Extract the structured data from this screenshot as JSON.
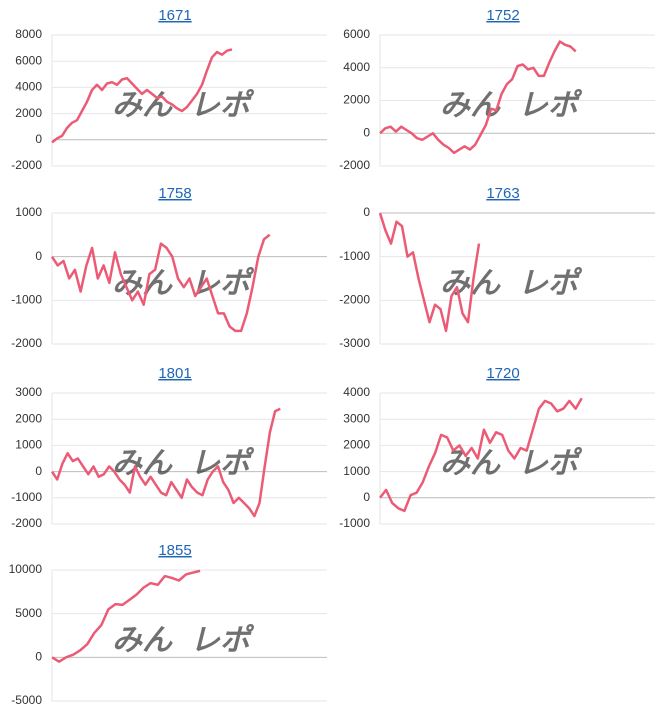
{
  "watermark": [
    "みん",
    "レポ"
  ],
  "chart_data": [
    {
      "type": "line",
      "title": "1671",
      "color": "#ec5b76",
      "xlim": [
        0,
        55
      ],
      "ylim": [
        -2000,
        8000
      ],
      "yticks": [
        -2000,
        0,
        2000,
        4000,
        6000,
        8000
      ],
      "grid": true,
      "values": [
        -200,
        100,
        300,
        900,
        1300,
        1500,
        2200,
        2900,
        3800,
        4200,
        3800,
        4300,
        4400,
        4200,
        4600,
        4700,
        4300,
        3900,
        3500,
        3800,
        3500,
        3200,
        3300,
        2900,
        2700,
        2400,
        2200,
        2500,
        3000,
        3500,
        4200,
        5300,
        6300,
        6700,
        6500,
        6800,
        6900
      ]
    },
    {
      "type": "line",
      "title": "1752",
      "color": "#ec5b76",
      "xlim": [
        0,
        52
      ],
      "ylim": [
        -2000,
        6000
      ],
      "yticks": [
        -2000,
        0,
        2000,
        4000,
        6000
      ],
      "grid": true,
      "values": [
        0,
        300,
        400,
        100,
        400,
        200,
        0,
        -300,
        -400,
        -200,
        0,
        -400,
        -700,
        -900,
        -1200,
        -1000,
        -800,
        -1000,
        -700,
        -100,
        500,
        1500,
        1400,
        2400,
        3000,
        3300,
        4100,
        4200,
        3900,
        4000,
        3500,
        3500,
        4300,
        5000,
        5600,
        5400,
        5300,
        5000
      ]
    },
    {
      "type": "line",
      "title": "1758",
      "color": "#ec5b76",
      "xlim": [
        0,
        48
      ],
      "ylim": [
        -2000,
        1000
      ],
      "yticks": [
        -2000,
        -1000,
        0,
        1000
      ],
      "grid": true,
      "values": [
        0,
        -200,
        -100,
        -500,
        -300,
        -800,
        -200,
        200,
        -500,
        -200,
        -600,
        100,
        -400,
        -700,
        -1000,
        -800,
        -1100,
        -400,
        -300,
        300,
        200,
        0,
        -500,
        -700,
        -500,
        -900,
        -700,
        -500,
        -900,
        -1300,
        -1300,
        -1600,
        -1700,
        -1700,
        -1300,
        -700,
        0,
        400,
        500
      ]
    },
    {
      "type": "line",
      "title": "1763",
      "color": "#ec5b76",
      "xlim": [
        0,
        50
      ],
      "ylim": [
        -3000,
        0
      ],
      "yticks": [
        -3000,
        -2000,
        -1000,
        0
      ],
      "grid": true,
      "values": [
        0,
        -400,
        -700,
        -200,
        -300,
        -1000,
        -900,
        -1500,
        -2000,
        -2500,
        -2100,
        -2200,
        -2700,
        -1900,
        -1700,
        -2300,
        -2500,
        -1500,
        -700
      ]
    },
    {
      "type": "line",
      "title": "1801",
      "color": "#ec5b76",
      "xlim": [
        0,
        53
      ],
      "ylim": [
        -2000,
        3000
      ],
      "yticks": [
        -2000,
        -1000,
        0,
        1000,
        2000,
        3000
      ],
      "grid": true,
      "values": [
        0,
        -300,
        300,
        700,
        400,
        500,
        200,
        -100,
        200,
        -200,
        -100,
        200,
        0,
        -300,
        -500,
        -800,
        200,
        -200,
        -500,
        -200,
        -500,
        -800,
        -900,
        -400,
        -700,
        -1000,
        -300,
        -600,
        -800,
        -900,
        -300,
        0,
        200,
        -400,
        -700,
        -1200,
        -1000,
        -1200,
        -1400,
        -1700,
        -1200,
        200,
        1500,
        2300,
        2400
      ]
    },
    {
      "type": "line",
      "title": "1720",
      "color": "#ec5b76",
      "xlim": [
        0,
        45
      ],
      "ylim": [
        -1000,
        4000
      ],
      "yticks": [
        -1000,
        0,
        1000,
        2000,
        3000,
        4000
      ],
      "grid": true,
      "values": [
        0,
        300,
        -200,
        -400,
        -500,
        100,
        200,
        600,
        1200,
        1700,
        2400,
        2300,
        1800,
        2000,
        1600,
        1900,
        1500,
        2600,
        2100,
        2500,
        2400,
        1800,
        1500,
        1900,
        1800,
        2600,
        3400,
        3700,
        3600,
        3300,
        3400,
        3700,
        3400,
        3800
      ]
    },
    {
      "type": "line",
      "title": "1855",
      "color": "#ec5b76",
      "xlim": [
        0,
        39
      ],
      "ylim": [
        -5000,
        10000
      ],
      "yticks": [
        -5000,
        0,
        5000,
        10000
      ],
      "grid": true,
      "values": [
        0,
        -500,
        0,
        300,
        800,
        1500,
        2800,
        3700,
        5500,
        6100,
        6000,
        6600,
        7200,
        8000,
        8500,
        8300,
        9300,
        9100,
        8800,
        9500,
        9700,
        9900
      ]
    }
  ]
}
